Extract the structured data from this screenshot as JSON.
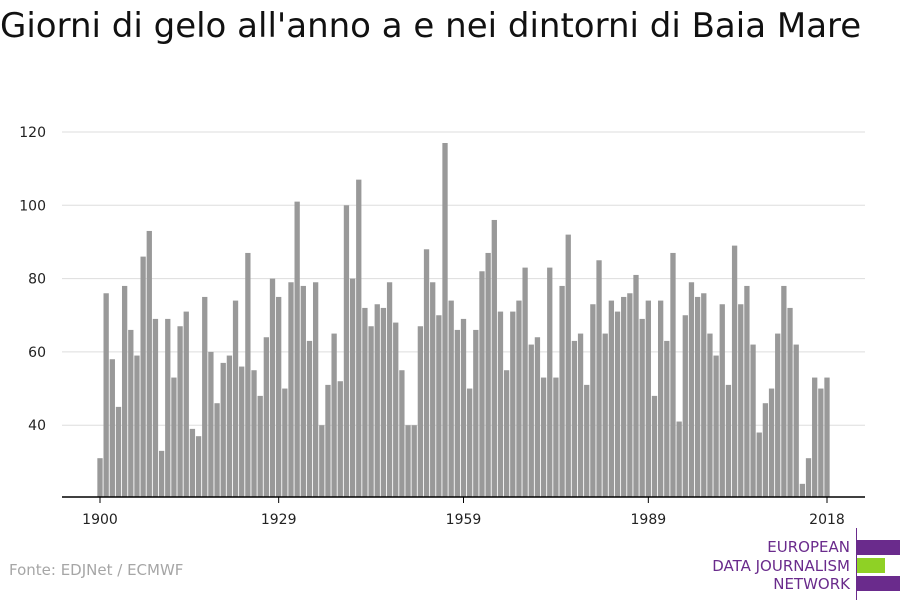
{
  "title": "Giorni di gelo all'anno a e nei dintorni di Baia Mare",
  "source": "Fonte: EDJNet / ECMWF",
  "logo": {
    "lines": [
      "EUROPEAN",
      "DATA JOURNALISM",
      "NETWORK"
    ],
    "colors": {
      "text": "#6a2b8c",
      "bar_primary": "#6a2b8c",
      "bar_accent": "#8fd125"
    }
  },
  "colors": {
    "bar": "#999999",
    "grid": "#dddddd",
    "axis": "#000000"
  },
  "chart_data": {
    "type": "bar",
    "title": "Giorni di gelo all'anno a e nei dintorni di Baia Mare",
    "xlabel": "",
    "ylabel": "",
    "xlim": [
      1900,
      2018
    ],
    "ylim": [
      21,
      120
    ],
    "yticks": [
      40,
      60,
      80,
      100,
      120
    ],
    "xticks": [
      1900,
      1929,
      1959,
      1989,
      2018
    ],
    "grid": true,
    "x_start": 1900,
    "values": [
      31,
      76,
      58,
      45,
      78,
      66,
      59,
      86,
      93,
      69,
      33,
      69,
      53,
      67,
      71,
      39,
      37,
      75,
      60,
      46,
      57,
      59,
      74,
      56,
      87,
      55,
      48,
      64,
      80,
      75,
      50,
      79,
      101,
      78,
      63,
      79,
      40,
      51,
      65,
      52,
      100,
      80,
      107,
      72,
      67,
      73,
      72,
      79,
      68,
      55,
      40,
      40,
      67,
      88,
      79,
      70,
      117,
      74,
      66,
      69,
      50,
      66,
      82,
      87,
      96,
      71,
      55,
      71,
      74,
      83,
      62,
      64,
      53,
      83,
      53,
      78,
      92,
      63,
      65,
      51,
      73,
      85,
      65,
      74,
      71,
      75,
      76,
      81,
      69,
      74,
      48,
      74,
      63,
      87,
      41,
      70,
      79,
      75,
      76,
      65,
      59,
      73,
      51,
      89,
      73,
      78,
      62,
      38,
      46,
      50,
      65,
      78,
      72,
      62,
      24,
      31,
      53,
      50,
      53
    ]
  }
}
